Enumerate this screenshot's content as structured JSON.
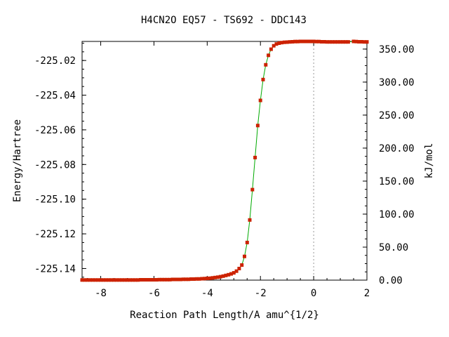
{
  "chart_data": {
    "type": "line",
    "title": "H4CN2O   EQ57 - TS692 - DDC143",
    "xlabel": "Reaction Path Length/A amu^{1/2}",
    "ylabel": "Energy/Hartree",
    "y2label": "kJ/mol",
    "xlim": [
      -8.7,
      2.0
    ],
    "ylim": [
      -225.1467,
      -225.009
    ],
    "y2lim": [
      0.0,
      361.6
    ],
    "x_ticks": [
      -8,
      -6,
      -4,
      -2,
      0,
      2
    ],
    "x_tick_labels": [
      "-8",
      "-6",
      "-4",
      "-2",
      "0",
      "2"
    ],
    "y_ticks": [
      -225.02,
      -225.04,
      -225.06,
      -225.08,
      -225.1,
      -225.12,
      -225.14
    ],
    "y_tick_labels": [
      "-225.02",
      "-225.04",
      "-225.06",
      "-225.08",
      "-225.10",
      "-225.12",
      "-225.14"
    ],
    "y2_ticks": [
      0,
      50,
      100,
      150,
      200,
      250,
      300,
      350
    ],
    "y2_tick_labels": [
      "0.00",
      "50.00",
      "100.00",
      "150.00",
      "200.00",
      "250.00",
      "300.00",
      "350.00"
    ],
    "ts_marker_x": 0.0,
    "grid": false,
    "series": [
      {
        "color": "#00aa00",
        "marker_color": "#cc2200",
        "x": [
          -8.7,
          -8.6,
          -8.5,
          -8.4,
          -8.3,
          -8.2,
          -8.1,
          -8.0,
          -7.9,
          -7.8,
          -7.7,
          -7.6,
          -7.5,
          -7.4,
          -7.3,
          -7.2,
          -7.1,
          -7.0,
          -6.9,
          -6.8,
          -6.7,
          -6.6,
          -6.5,
          -6.4,
          -6.3,
          -6.2,
          -6.1,
          -6.0,
          -5.9,
          -5.8,
          -5.7,
          -5.6,
          -5.5,
          -5.4,
          -5.3,
          -5.2,
          -5.1,
          -5.0,
          -4.9,
          -4.8,
          -4.7,
          -4.6,
          -4.5,
          -4.4,
          -4.3,
          -4.2,
          -4.1,
          -4.0,
          -3.9,
          -3.8,
          -3.7,
          -3.6,
          -3.5,
          -3.4,
          -3.3,
          -3.2,
          -3.1,
          -3.0,
          -2.9,
          -2.8,
          -2.7,
          -2.6,
          -2.5,
          -2.4,
          -2.3,
          -2.2,
          -2.1,
          -2.0,
          -1.9,
          -1.8,
          -1.7,
          -1.6,
          -1.5,
          -1.4,
          -1.3,
          -1.2,
          -1.1,
          -1.0,
          -0.9,
          -0.8,
          -0.7,
          -0.6,
          -0.5,
          -0.4,
          -0.3,
          -0.2,
          -0.1,
          0.0,
          0.1,
          0.2,
          0.3,
          0.4,
          0.5,
          0.6,
          0.7,
          0.8,
          0.9,
          1.0,
          1.1,
          1.2,
          1.3,
          1.5,
          1.6,
          1.7,
          1.8,
          1.9,
          2.0
        ],
        "y": [
          -225.1466,
          -225.1466,
          -225.1466,
          -225.1466,
          -225.1466,
          -225.1466,
          -225.1466,
          -225.1466,
          -225.1466,
          -225.1466,
          -225.1466,
          -225.1466,
          -225.1466,
          -225.1466,
          -225.1466,
          -225.1466,
          -225.1466,
          -225.1466,
          -225.1466,
          -225.1466,
          -225.1466,
          -225.1466,
          -225.1465,
          -225.1465,
          -225.1465,
          -225.1465,
          -225.1465,
          -225.1465,
          -225.1465,
          -225.1464,
          -225.1464,
          -225.1464,
          -225.1464,
          -225.1464,
          -225.1463,
          -225.1463,
          -225.1463,
          -225.1463,
          -225.1462,
          -225.1462,
          -225.1462,
          -225.1461,
          -225.1461,
          -225.146,
          -225.146,
          -225.1459,
          -225.1458,
          -225.1457,
          -225.1456,
          -225.1454,
          -225.1452,
          -225.145,
          -225.1447,
          -225.1444,
          -225.144,
          -225.1436,
          -225.1431,
          -225.1425,
          -225.1415,
          -225.14,
          -225.138,
          -225.133,
          -225.125,
          -225.112,
          -225.0945,
          -225.076,
          -225.0575,
          -225.043,
          -225.031,
          -225.0225,
          -225.017,
          -225.0135,
          -225.0115,
          -225.0105,
          -225.01,
          -225.0097,
          -225.0095,
          -225.0094,
          -225.0093,
          -225.0092,
          -225.0091,
          -225.0091,
          -225.009,
          -225.009,
          -225.009,
          -225.009,
          -225.009,
          -225.009,
          -225.0091,
          -225.0091,
          -225.0092,
          -225.0092,
          -225.0093,
          -225.0093,
          -225.0093,
          -225.0093,
          -225.0093,
          -225.0093,
          -225.0093,
          -225.0093,
          -225.0093,
          -225.009,
          -225.0091,
          -225.0092,
          -225.0092,
          -225.0093,
          -225.0093
        ]
      }
    ]
  }
}
